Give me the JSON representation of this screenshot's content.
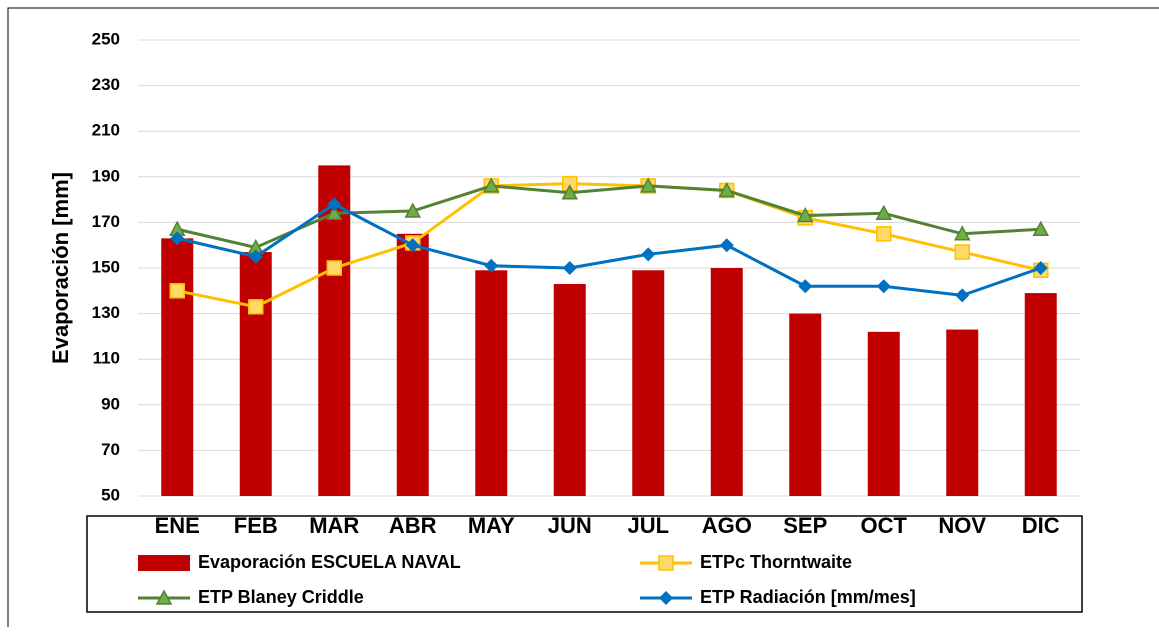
{
  "chart_data": {
    "type": "bar",
    "y_label": "Evaporación [mm]",
    "categories": [
      "ENE",
      "FEB",
      "MAR",
      "ABR",
      "MAY",
      "JUN",
      "JUL",
      "AGO",
      "SEP",
      "OCT",
      "NOV",
      "DIC"
    ],
    "series": [
      {
        "name": "Evaporación ESCUELA NAVAL",
        "type": "bar",
        "color": "#c00000",
        "values": [
          163,
          157,
          195,
          165,
          149,
          143,
          149,
          150,
          130,
          122,
          123,
          139
        ]
      },
      {
        "name": "ETPc  Thorntwaite",
        "type": "line",
        "marker": "square",
        "color": "#ffc000",
        "values": [
          140,
          133,
          150,
          161,
          186,
          187,
          186,
          184,
          172,
          165,
          157,
          149
        ]
      },
      {
        "name": "ETP Blaney Criddle",
        "type": "line",
        "marker": "triangle",
        "color": "#548235",
        "values": [
          167,
          159,
          174,
          175,
          186,
          183,
          186,
          184,
          173,
          174,
          165,
          167
        ]
      },
      {
        "name": "ETP Radiación [mm/mes]",
        "type": "line",
        "marker": "diamond",
        "color": "#0070c0",
        "values": [
          163,
          155,
          178,
          160,
          151,
          150,
          156,
          160,
          142,
          142,
          138,
          150
        ]
      }
    ],
    "ylim": [
      50,
      250
    ],
    "yticks": [
      50,
      70,
      90,
      110,
      130,
      150,
      170,
      190,
      210,
      230,
      250
    ],
    "grid": true,
    "legend": "bottom"
  }
}
